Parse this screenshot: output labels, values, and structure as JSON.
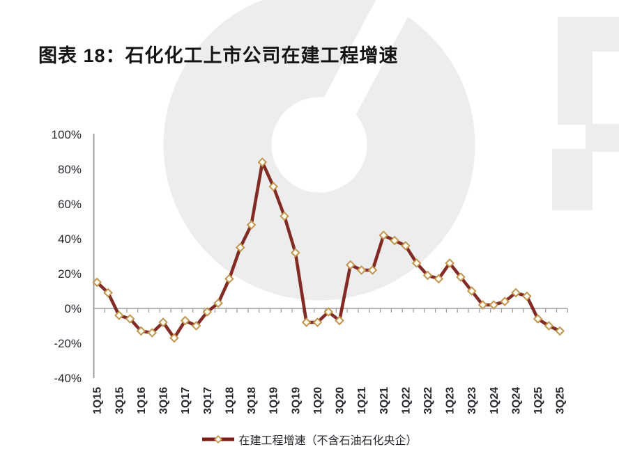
{
  "page_title": "图表 18：石化化工上市公司在建工程增速",
  "legend": {
    "label": "在建工程增速（不含石油石化央企）"
  },
  "colors": {
    "line": "#7a1b14",
    "marker_fill": "#fffef5",
    "marker_stroke": "#c2964f",
    "axis": "#9e9e9e",
    "tick_text": "#26282e",
    "title_text": "#141414",
    "watermark": "#ededed"
  },
  "chart_data": {
    "type": "line",
    "title": "图表 18：石化化工上市公司在建工程增速",
    "xlabel": "",
    "ylabel": "",
    "ylim": [
      -40,
      100
    ],
    "y_tick_step": 20,
    "y_tick_labels": [
      "100%",
      "80%",
      "60%",
      "40%",
      "20%",
      "0%",
      "-20%",
      "-40%"
    ],
    "grid": "zero-line-only",
    "legend_position": "bottom",
    "categories": [
      "1Q15",
      "2Q15",
      "3Q15",
      "4Q15",
      "1Q16",
      "2Q16",
      "3Q16",
      "4Q16",
      "1Q17",
      "2Q17",
      "3Q17",
      "4Q17",
      "1Q18",
      "2Q18",
      "3Q18",
      "4Q18",
      "1Q19",
      "2Q19",
      "3Q19",
      "4Q19",
      "1Q20",
      "2Q20",
      "3Q20",
      "4Q20",
      "1Q21",
      "2Q21",
      "3Q21",
      "4Q21",
      "1Q22",
      "2Q22",
      "3Q22",
      "4Q22",
      "1Q23",
      "2Q23",
      "3Q23",
      "4Q23",
      "1Q24",
      "2Q24",
      "3Q24",
      "4Q24",
      "1Q25",
      "2Q25",
      "3Q25"
    ],
    "x_tick_labels": [
      "1Q15",
      "3Q15",
      "1Q16",
      "3Q16",
      "1Q17",
      "3Q17",
      "1Q18",
      "3Q18",
      "1Q19",
      "3Q19",
      "1Q20",
      "3Q20",
      "1Q21",
      "3Q21",
      "1Q22",
      "3Q22",
      "1Q23",
      "3Q23",
      "1Q24",
      "3Q24",
      "1Q25",
      "3Q25"
    ],
    "series": [
      {
        "name": "在建工程增速（不含石油石化央企）",
        "unit": "%",
        "values": [
          15,
          9,
          -4,
          -6,
          -13,
          -14,
          -8,
          -17,
          -7,
          -10,
          -2,
          3,
          17,
          35,
          48,
          84,
          70,
          53,
          32,
          -8,
          -8,
          -2,
          -7,
          25,
          22,
          22,
          42,
          39,
          36,
          26,
          19,
          17,
          26,
          18,
          10,
          2,
          2,
          4,
          9,
          7,
          -6,
          -10,
          -13
        ]
      }
    ]
  }
}
